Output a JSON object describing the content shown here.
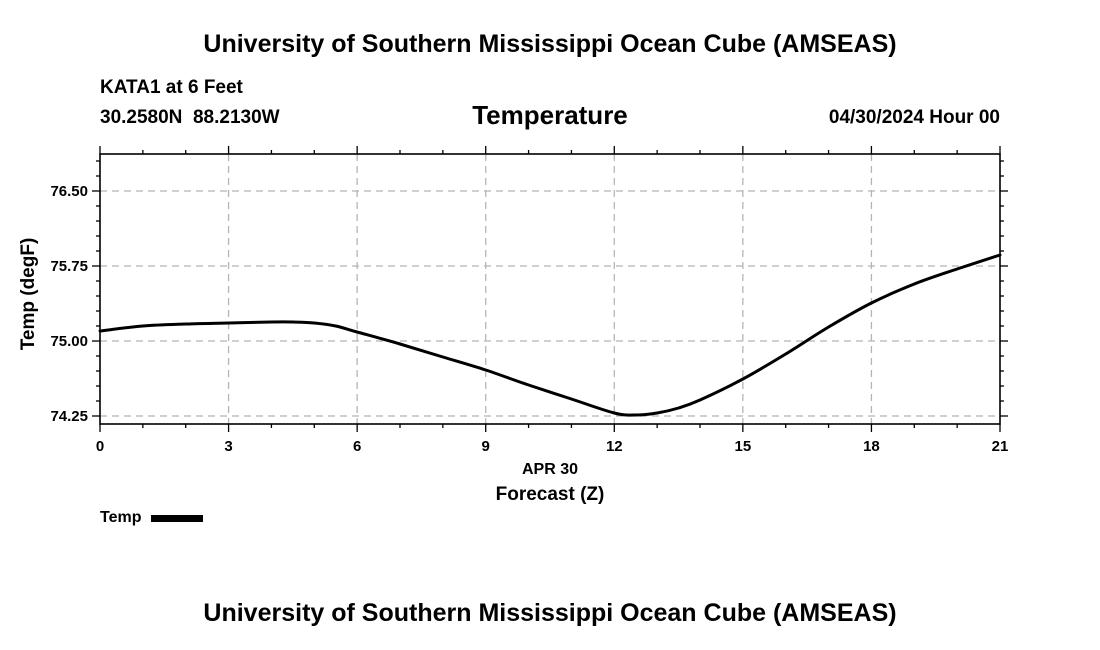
{
  "header": {
    "title": "University of Southern Mississippi Ocean Cube (AMSEAS)",
    "station": "KATA1 at 6 Feet",
    "coords": "30.2580N  88.2130W",
    "run_time": "04/30/2024 Hour 00"
  },
  "footer": {
    "title": "University of Southern Mississippi Ocean Cube (AMSEAS)"
  },
  "legend": {
    "label": "Temp",
    "color": "#000000"
  },
  "chart_data": {
    "type": "line",
    "title": "Temperature",
    "xlabel": "Forecast (Z)",
    "xlabel_date": "APR 30",
    "ylabel": "Temp (degF)",
    "xlim": [
      0,
      21
    ],
    "ylim": [
      74.17,
      76.87
    ],
    "x_ticks": [
      0,
      3,
      6,
      9,
      12,
      15,
      18,
      21
    ],
    "x_tick_labels": [
      "0",
      "3",
      "6",
      "9",
      "12",
      "15",
      "18",
      "21"
    ],
    "y_ticks": [
      74.25,
      75.0,
      75.75,
      76.5
    ],
    "y_tick_labels": [
      "74.25",
      "75.00",
      "75.75",
      "76.50"
    ],
    "grid": true,
    "legend_position": "bottom-left",
    "series": [
      {
        "name": "Temp",
        "color": "#000000",
        "x": [
          0,
          1,
          2,
          3,
          4,
          4.5,
          5,
          5.5,
          6,
          7,
          8,
          9,
          10,
          11,
          12,
          12.5,
          13,
          13.5,
          14,
          15,
          16,
          17,
          18,
          19,
          20,
          21
        ],
        "y": [
          75.1,
          75.15,
          75.17,
          75.18,
          75.19,
          75.19,
          75.18,
          75.15,
          75.09,
          74.97,
          74.84,
          74.71,
          74.56,
          74.42,
          74.28,
          74.26,
          74.28,
          74.33,
          74.41,
          74.62,
          74.87,
          75.14,
          75.38,
          75.57,
          75.72,
          75.86
        ]
      }
    ]
  }
}
